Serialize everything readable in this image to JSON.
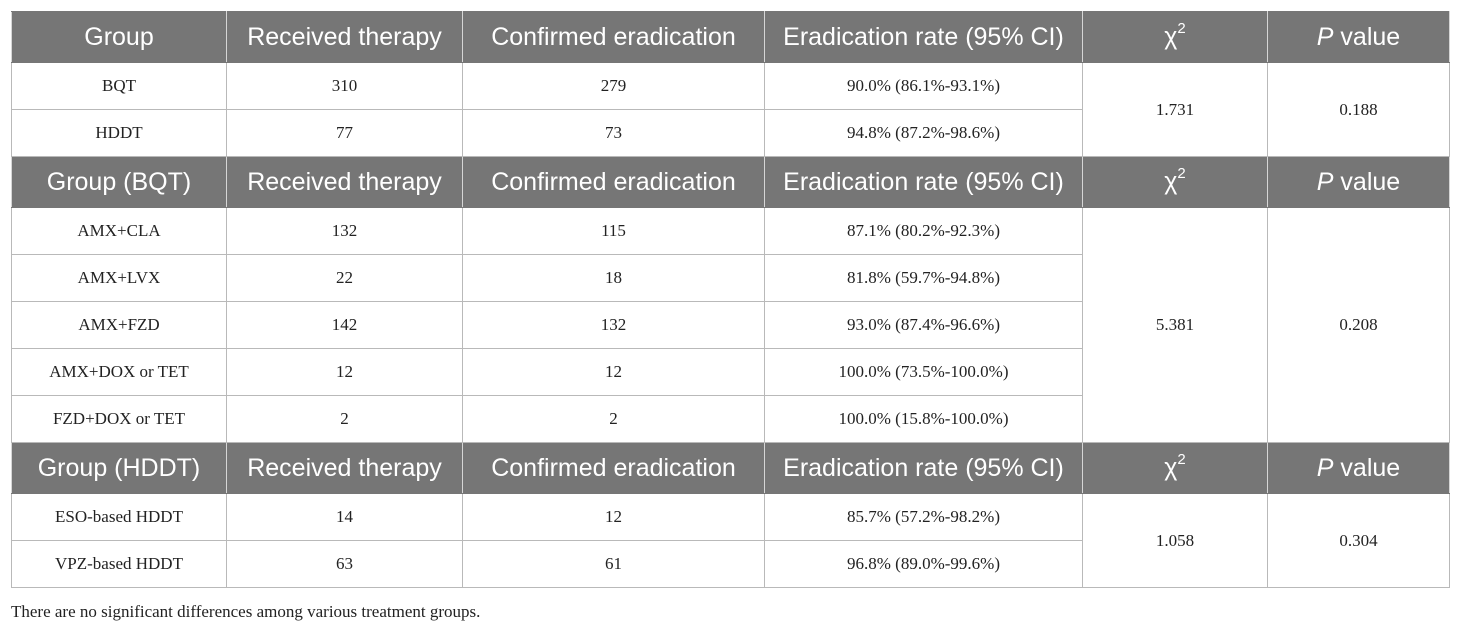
{
  "sections": [
    {
      "header": {
        "group": "Group",
        "received": "Received therapy",
        "confirmed": "Confirmed eradication",
        "rate": "Eradication rate (95% CI)",
        "chi": "χ",
        "chi_sup": "2",
        "p_italic": "P",
        "p_rest": " value"
      },
      "rows": [
        {
          "group": "BQT",
          "received": "310",
          "confirmed": "279",
          "rate": "90.0% (86.1%-93.1%)"
        },
        {
          "group": "HDDT",
          "received": "77",
          "confirmed": "73",
          "rate": "94.8% (87.2%-98.6%)"
        }
      ],
      "chi2": "1.731",
      "p": "0.188"
    },
    {
      "header": {
        "group": "Group (BQT)",
        "received": "Received therapy",
        "confirmed": "Confirmed eradication",
        "rate": "Eradication rate (95% CI)",
        "chi": "χ",
        "chi_sup": "2",
        "p_italic": "P",
        "p_rest": " value"
      },
      "rows": [
        {
          "group": "AMX+CLA",
          "received": "132",
          "confirmed": "115",
          "rate": "87.1% (80.2%-92.3%)"
        },
        {
          "group": "AMX+LVX",
          "received": "22",
          "confirmed": "18",
          "rate": "81.8% (59.7%-94.8%)"
        },
        {
          "group": "AMX+FZD",
          "received": "142",
          "confirmed": "132",
          "rate": "93.0% (87.4%-96.6%)"
        },
        {
          "group": "AMX+DOX or TET",
          "received": "12",
          "confirmed": "12",
          "rate": "100.0% (73.5%-100.0%)"
        },
        {
          "group": "FZD+DOX or TET",
          "received": "2",
          "confirmed": "2",
          "rate": "100.0% (15.8%-100.0%)"
        }
      ],
      "chi2": "5.381",
      "p": "0.208"
    },
    {
      "header": {
        "group": "Group (HDDT)",
        "received": "Received therapy",
        "confirmed": "Confirmed eradication",
        "rate": "Eradication rate (95% CI)",
        "chi": "χ",
        "chi_sup": "2",
        "p_italic": "P",
        "p_rest": " value"
      },
      "rows": [
        {
          "group": "ESO-based HDDT",
          "received": "14",
          "confirmed": "12",
          "rate": "85.7% (57.2%-98.2%)"
        },
        {
          "group": "VPZ-based HDDT",
          "received": "63",
          "confirmed": "61",
          "rate": "96.8% (89.0%-99.6%)"
        }
      ],
      "chi2": "1.058",
      "p": "0.304"
    }
  ],
  "footnote": "There are no significant differences among various treatment groups."
}
